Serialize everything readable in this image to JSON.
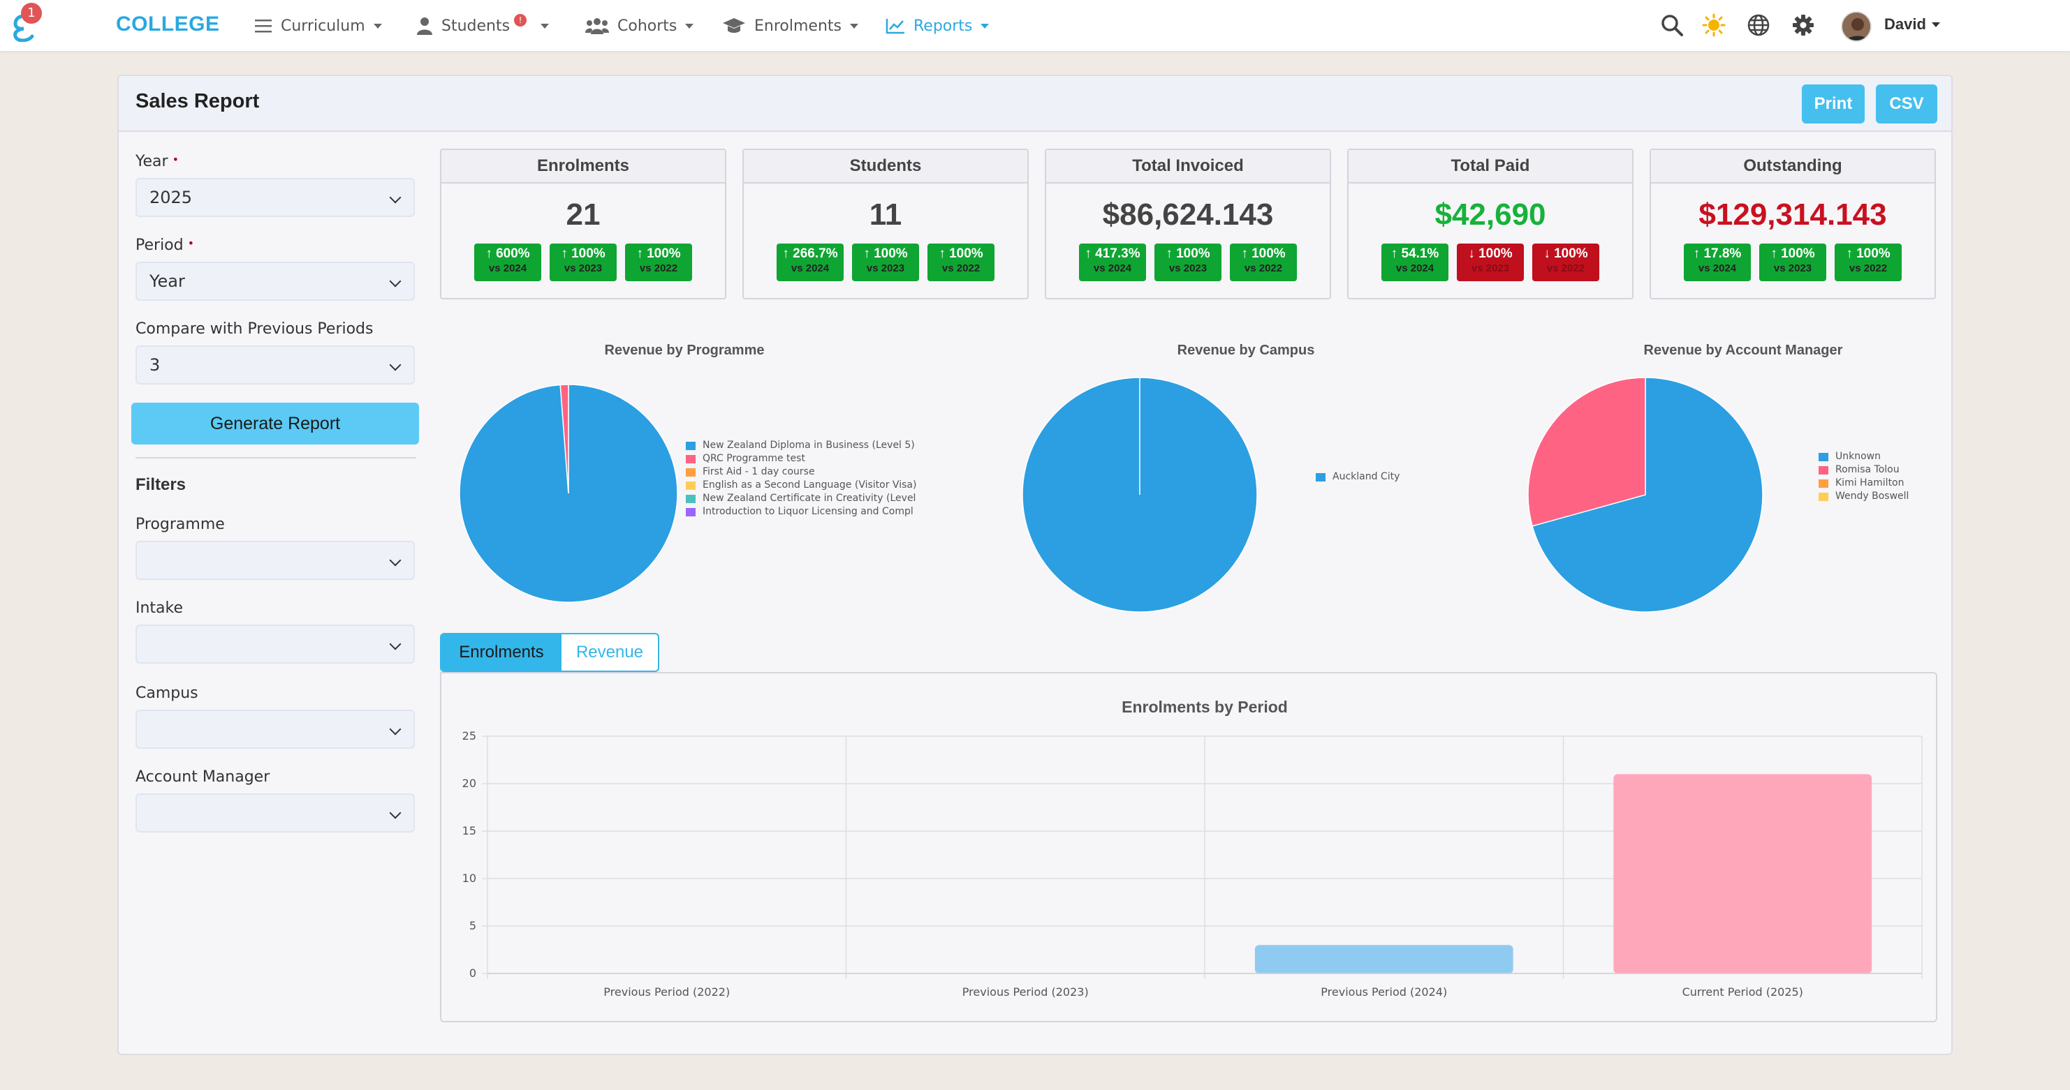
{
  "nav": {
    "notification_count": "1",
    "brand": "COLLEGE",
    "items": [
      {
        "label": "Curriculum",
        "icon": "list-icon"
      },
      {
        "label": "Students",
        "icon": "user-icon",
        "badge": "!"
      },
      {
        "label": "Cohorts",
        "icon": "users-icon"
      },
      {
        "label": "Enrolments",
        "icon": "graduation-cap-icon"
      },
      {
        "label": "Reports",
        "icon": "line-chart-icon",
        "active": true
      }
    ],
    "user_name": "David"
  },
  "page": {
    "title": "Sales Report",
    "print_label": "Print",
    "csv_label": "CSV"
  },
  "form": {
    "year_label": "Year",
    "year_value": "2025",
    "period_label": "Period",
    "period_value": "Year",
    "compare_label": "Compare with Previous Periods",
    "compare_value": "3",
    "generate_label": "Generate Report",
    "filters_title": "Filters",
    "programme_label": "Programme",
    "intake_label": "Intake",
    "campus_label": "Campus",
    "account_manager_label": "Account Manager",
    "required_mark": "•"
  },
  "stats": [
    {
      "title": "Enrolments",
      "value": "21",
      "style": "neutral",
      "chips": [
        {
          "pct": "↑ 600%",
          "vs": "vs 2024",
          "dir": "up"
        },
        {
          "pct": "↑ 100%",
          "vs": "vs 2023",
          "dir": "up"
        },
        {
          "pct": "↑ 100%",
          "vs": "vs 2022",
          "dir": "up"
        }
      ]
    },
    {
      "title": "Students",
      "value": "11",
      "style": "neutral",
      "chips": [
        {
          "pct": "↑ 266.7%",
          "vs": "vs 2024",
          "dir": "up"
        },
        {
          "pct": "↑ 100%",
          "vs": "vs 2023",
          "dir": "up"
        },
        {
          "pct": "↑ 100%",
          "vs": "vs 2022",
          "dir": "up"
        }
      ]
    },
    {
      "title": "Total Invoiced",
      "value": "$86,624.143",
      "style": "neutral",
      "chips": [
        {
          "pct": "↑ 417.3%",
          "vs": "vs 2024",
          "dir": "up"
        },
        {
          "pct": "↑ 100%",
          "vs": "vs 2023",
          "dir": "up"
        },
        {
          "pct": "↑ 100%",
          "vs": "vs 2022",
          "dir": "up"
        }
      ]
    },
    {
      "title": "Total Paid",
      "value": "$42,690",
      "style": "green",
      "chips": [
        {
          "pct": "↑ 54.1%",
          "vs": "vs 2024",
          "dir": "up"
        },
        {
          "pct": "↓ 100%",
          "vs": "vs 2023",
          "dir": "down"
        },
        {
          "pct": "↓ 100%",
          "vs": "vs 2022",
          "dir": "down"
        }
      ]
    },
    {
      "title": "Outstanding",
      "value": "$129,314.143",
      "style": "red",
      "chips": [
        {
          "pct": "↑ 17.8%",
          "vs": "vs 2024",
          "dir": "up"
        },
        {
          "pct": "↑ 100%",
          "vs": "vs 2023",
          "dir": "up"
        },
        {
          "pct": "↑ 100%",
          "vs": "vs 2022",
          "dir": "up"
        }
      ]
    }
  ],
  "colors": {
    "blue": "#2b9fe2",
    "pink": "#ff6384",
    "orange": "#ff9f40",
    "yellow": "#ffcd56",
    "teal": "#4bc0c0",
    "purple": "#9966ff",
    "bar_blue": "#8fcbf0",
    "bar_pink": "#ffa7ba"
  },
  "pies": [
    {
      "title": "Revenue by Programme",
      "slices": [
        {
          "label": "New Zealand Diploma in Business (Level 5)",
          "value": 98.8,
          "color": "#2b9fe2"
        },
        {
          "label": "QRC Programme test",
          "value": 1.2,
          "color": "#ff6384"
        },
        {
          "label": "First Aid - 1 day course",
          "value": 0,
          "color": "#ff9f40"
        },
        {
          "label": "English as a Second Language (Visitor Visa)",
          "value": 0,
          "color": "#ffcd56"
        },
        {
          "label": "New Zealand Certificate in Creativity (Level",
          "value": 0,
          "color": "#4bc0c0"
        },
        {
          "label": "Introduction to Liquor Licensing and Compl",
          "value": 0,
          "color": "#9966ff"
        }
      ]
    },
    {
      "title": "Revenue by Campus",
      "slices": [
        {
          "label": "Auckland City",
          "value": 100,
          "color": "#2b9fe2"
        }
      ]
    },
    {
      "title": "Revenue by Account Manager",
      "slices": [
        {
          "label": "Unknown",
          "value": 70.7,
          "color": "#2b9fe2"
        },
        {
          "label": "Romisa Tolou",
          "value": 29.3,
          "color": "#ff6384"
        },
        {
          "label": "Kimi Hamilton",
          "value": 0,
          "color": "#ff9f40"
        },
        {
          "label": "Wendy Boswell",
          "value": 0,
          "color": "#ffcd56"
        }
      ]
    }
  ],
  "tabs": {
    "enrolments": "Enrolments",
    "revenue": "Revenue"
  },
  "chart_data": {
    "type": "bar",
    "title": "Enrolments by Period",
    "categories": [
      "Previous Period (2022)",
      "Previous Period (2023)",
      "Previous Period (2024)",
      "Current Period (2025)"
    ],
    "values": [
      0,
      0,
      3,
      21
    ],
    "bar_colors": [
      "#8fcbf0",
      "#8fcbf0",
      "#8fcbf0",
      "#ffa7ba"
    ],
    "ylim": [
      0,
      25
    ],
    "yticks": [
      0,
      5,
      10,
      15,
      20,
      25
    ],
    "grid": true
  }
}
